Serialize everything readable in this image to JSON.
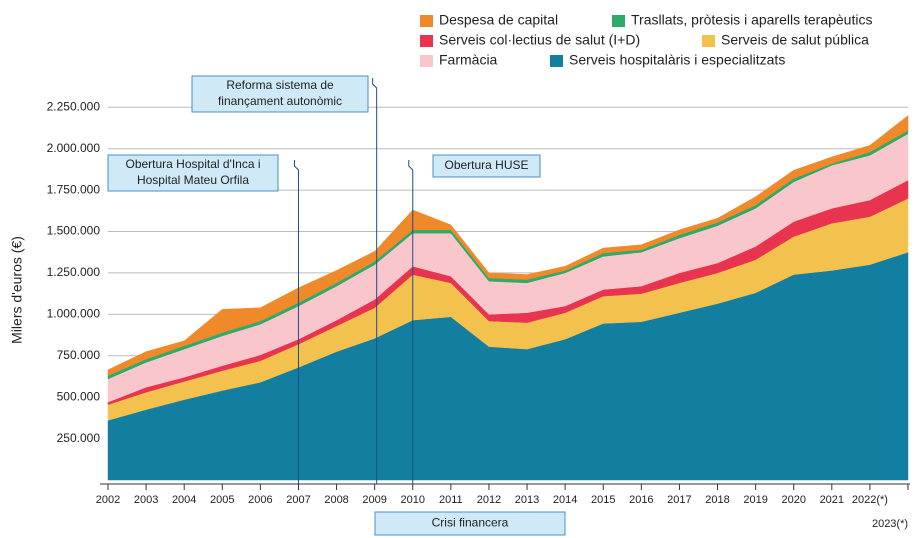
{
  "chart_data": {
    "type": "area",
    "stacked": true,
    "y_label": "Milers d'euros (€)",
    "categories": [
      "2002",
      "2003",
      "2004",
      "2005",
      "2006",
      "2007",
      "2008",
      "2009",
      "2010",
      "2011",
      "2012",
      "2013",
      "2014",
      "2015",
      "2016",
      "2017",
      "2018",
      "2019",
      "2020",
      "2021",
      "2022(*)",
      "2023(*)"
    ],
    "series": [
      {
        "name": "Serveis hospitalàris i especialitzats",
        "color": "#127ea0",
        "values": [
          360000,
          425000,
          485000,
          540000,
          590000,
          680000,
          775000,
          855000,
          965000,
          985000,
          805000,
          790000,
          850000,
          945000,
          955000,
          1010000,
          1065000,
          1130000,
          1240000,
          1265000,
          1300000,
          1375000
        ]
      },
      {
        "name": "Serveis de salut pública",
        "color": "#f2c14e",
        "values": [
          95000,
          105000,
          110000,
          120000,
          130000,
          140000,
          155000,
          185000,
          275000,
          205000,
          155000,
          160000,
          160000,
          165000,
          170000,
          180000,
          185000,
          200000,
          230000,
          285000,
          290000,
          325000
        ]
      },
      {
        "name": "Serveis col·lectius de salut (I+D)",
        "color": "#e8344e",
        "values": [
          15000,
          30000,
          25000,
          30000,
          35000,
          30000,
          35000,
          50000,
          50000,
          40000,
          40000,
          60000,
          40000,
          40000,
          45000,
          60000,
          60000,
          80000,
          90000,
          90000,
          100000,
          110000
        ]
      },
      {
        "name": "Farmàcia",
        "color": "#f8c6cb",
        "values": [
          140000,
          150000,
          170000,
          180000,
          185000,
          200000,
          205000,
          210000,
          200000,
          260000,
          200000,
          180000,
          200000,
          200000,
          205000,
          210000,
          225000,
          230000,
          240000,
          260000,
          270000,
          280000
        ]
      },
      {
        "name": "Trasllats, pròtesis i aparells terapèutics",
        "color": "#2eaa6b",
        "values": [
          20000,
          20000,
          20000,
          20000,
          20000,
          20000,
          20000,
          20000,
          20000,
          20000,
          20000,
          20000,
          15000,
          20000,
          15000,
          20000,
          20000,
          20000,
          20000,
          10000,
          20000,
          20000
        ]
      },
      {
        "name": "Despesa de capital",
        "color": "#f0892a",
        "values": [
          35000,
          45000,
          30000,
          140000,
          80000,
          90000,
          75000,
          60000,
          120000,
          30000,
          30000,
          30000,
          25000,
          30000,
          30000,
          30000,
          25000,
          50000,
          50000,
          40000,
          40000,
          90000
        ]
      }
    ],
    "ylim": [
      0,
      2300000
    ],
    "yticks": [
      {
        "value": 250000,
        "label": "250.000"
      },
      {
        "value": 500000,
        "label": "500.000"
      },
      {
        "value": 750000,
        "label": "750.000"
      },
      {
        "value": 1000000,
        "label": "1.000.000"
      },
      {
        "value": 1250000,
        "label": "1.250.000"
      },
      {
        "value": 1500000,
        "label": "1.500.000"
      },
      {
        "value": 1750000,
        "label": "1.750.000"
      },
      {
        "value": 2000000,
        "label": "2.000.000"
      },
      {
        "value": 2250000,
        "label": "2.250.000"
      }
    ],
    "grid": true,
    "legend": "top-right",
    "annotations": [
      {
        "lines": [
          "Reforma sistema de",
          "finançament autonòmic"
        ],
        "category": "2009"
      },
      {
        "lines": [
          "Obertura Hospital d'Inca i",
          "Hospital Mateu Orfila"
        ],
        "category": "2007"
      },
      {
        "lines": [
          "Obertura HUSE"
        ],
        "category": "2010"
      },
      {
        "lines": [
          "Crisi financera"
        ],
        "category": "2009"
      }
    ]
  }
}
